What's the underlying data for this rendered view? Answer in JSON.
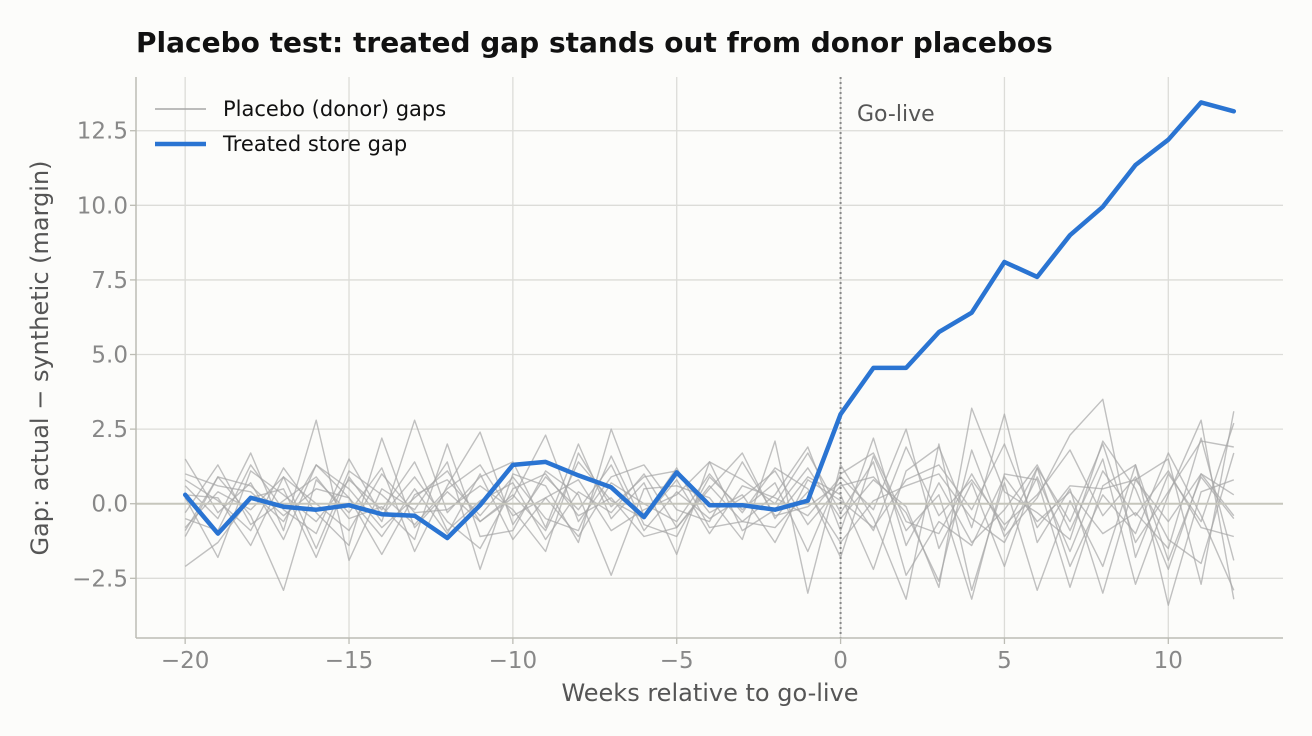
{
  "chart_data": {
    "type": "line",
    "title": "Placebo test: treated gap stands out from donor placebos",
    "xlabel": "Weeks relative to go-live",
    "ylabel": "Gap: actual − synthetic (margin)",
    "xlim": [
      -21.5,
      13.5
    ],
    "ylim": [
      -4.5,
      14.3
    ],
    "xticks": [
      -20,
      -15,
      -10,
      -5,
      0,
      5,
      10
    ],
    "xtick_labels": [
      "−20",
      "−15",
      "−10",
      "−5",
      "0",
      "5",
      "10"
    ],
    "yticks": [
      -2.5,
      0.0,
      2.5,
      5.0,
      7.5,
      10.0,
      12.5
    ],
    "ytick_labels": [
      "−2.5",
      "0.0",
      "2.5",
      "5.0",
      "7.5",
      "10.0",
      "12.5"
    ],
    "grid": true,
    "legend_position": "top-left",
    "legend": [
      {
        "label": "Placebo (donor) gaps",
        "style": "thin-gray"
      },
      {
        "label": "Treated store gap",
        "style": "thick-blue"
      }
    ],
    "annotations": [
      {
        "text": "Go-live",
        "x": 0,
        "type": "vertical-dotted-line"
      }
    ],
    "reference_lines": [
      {
        "axis": "y",
        "value": 0
      }
    ],
    "colors": {
      "treated": "#2a74d2",
      "placebo": "#a6a6a6",
      "grid": "#dcdcd8",
      "zero_line": "#c6c6bc",
      "spine": "#bcbcb4",
      "vline": "#888888",
      "background": "#fcfcfa"
    },
    "x": [
      -20,
      -19,
      -18,
      -17,
      -16,
      -15,
      -14,
      -13,
      -12,
      -11,
      -10,
      -9,
      -8,
      -7,
      -6,
      -5,
      -4,
      -3,
      -2,
      -1,
      0,
      1,
      2,
      3,
      4,
      5,
      6,
      7,
      8,
      9,
      10,
      11,
      12
    ],
    "treated": {
      "name": "Treated store gap",
      "values": [
        0.3,
        -1.0,
        0.2,
        -0.1,
        -0.2,
        -0.05,
        -0.35,
        -0.4,
        -1.15,
        -0.05,
        1.3,
        1.4,
        0.95,
        0.55,
        -0.45,
        1.05,
        -0.05,
        -0.05,
        -0.2,
        0.1,
        3.0,
        4.55,
        4.55,
        5.75,
        6.4,
        8.1,
        7.6,
        9.0,
        9.95,
        11.35,
        12.2,
        13.45,
        13.15
      ]
    },
    "placebos": [
      [
        1.5,
        -0.3,
        0.7,
        -1.2,
        1.3,
        0.5,
        -0.8,
        0.2,
        1.1,
        -0.6,
        0.3,
        -0.9,
        1.4,
        0.1,
        -0.5,
        0.8,
        -1.0,
        0.6,
        0.2,
        -0.4,
        0.9,
        -0.2,
        2.5,
        -1.5,
        0.7,
        -2.1,
        1.2,
        -0.6,
        2.0,
        -1.3,
        0.4,
        2.1,
        1.9
      ],
      [
        -0.8,
        0.4,
        -0.2,
        0.9,
        -1.5,
        1.1,
        0.3,
        -0.7,
        0.5,
        1.3,
        -0.4,
        0.2,
        -1.1,
        0.7,
        0.0,
        -0.6,
        1.0,
        -0.3,
        1.2,
        0.5,
        -1.8,
        1.6,
        -0.9,
        0.3,
        -3.2,
        1.0,
        0.8,
        -2.8,
        0.6,
        1.3,
        -1.9,
        0.9,
        -0.5
      ],
      [
        0.2,
        -1.8,
        1.1,
        0.3,
        -0.6,
        0.8,
        -0.2,
        1.4,
        -0.9,
        0.1,
        0.7,
        -1.2,
        0.4,
        -0.3,
        1.0,
        -0.8,
        0.5,
        1.7,
        -0.5,
        0.9,
        0.3,
        -2.2,
        1.1,
        1.9,
        -0.8,
        3.0,
        -1.3,
        0.5,
        -3.0,
        0.8,
        1.5,
        -2.7,
        3.1
      ],
      [
        -1.1,
        0.9,
        -0.4,
        -2.9,
        0.8,
        -0.3,
        1.2,
        -1.6,
        0.6,
        2.4,
        -0.7,
        0.9,
        -0.2,
        1.3,
        -0.9,
        0.4,
        -0.5,
        0.2,
        1.1,
        -0.7,
        0.6,
        0.9,
        -0.3,
        -2.6,
        1.8,
        -1.1,
        0.2,
        2.3,
        3.5,
        -1.8,
        1.0,
        -0.6,
        2.7
      ],
      [
        0.6,
        -0.5,
        1.7,
        -0.9,
        2.8,
        -1.9,
        0.5,
        -0.2,
        1.4,
        -2.2,
        1.0,
        0.6,
        -1.3,
        2.5,
        -0.4,
        1.2,
        -0.8,
        -0.6,
        0.3,
        1.9,
        -0.9,
        2.2,
        -1.4,
        0.7,
        -1.3,
        -0.2,
        1.3,
        -0.9,
        1.5,
        -2.7,
        0.3,
        2.8,
        -3.2
      ],
      [
        -2.1,
        -1.3,
        0.2,
        0.5,
        -1.8,
        0.9,
        -0.6,
        2.8,
        -0.3,
        0.9,
        1.4,
        -0.8,
        2.0,
        -0.5,
        0.7,
        -1.7,
        1.4,
        -0.9,
        -0.2,
        1.2,
        -0.5,
        0.8,
        -0.1,
        -2.8,
        3.2,
        0.4,
        -0.3,
        -1.2,
        2.1,
        0.5,
        -2.2,
        1.0,
        -0.4
      ],
      [
        0.8,
        0.1,
        -0.9,
        1.2,
        -0.3,
        -1.4,
        2.2,
        -0.8,
        0.4,
        -0.6,
        0.2,
        2.3,
        -0.6,
        0.9,
        1.3,
        -0.2,
        -0.6,
        1.4,
        -0.4,
        -0.1,
        0.7,
        -0.9,
        1.9,
        -0.4,
        0.8,
        -0.7,
        0.3,
        1.8,
        -0.4,
        0.9,
        -1.2,
        -2.0,
        1.7
      ],
      [
        -0.3,
        1.3,
        -0.7,
        0.1,
        0.9,
        -0.5,
        -0.1,
        -1.2,
        2.0,
        -1.1,
        -0.9,
        1.1,
        0.3,
        -2.4,
        0.5,
        0.6,
        0.2,
        -1.2,
        2.1,
        -3.0,
        1.3,
        -0.5,
        -3.2,
        2.0,
        -2.9,
        0.7,
        -2.9,
        0.1,
        -2.1,
        1.3,
        -3.4,
        0.4,
        0.8
      ],
      [
        1.0,
        0.6,
        0.4,
        -0.6,
        1.3,
        0.2,
        -1.1,
        0.5,
        -1.0,
        1.0,
        -1.2,
        0.2,
        0.8,
        -0.9,
        -0.2,
        0.3,
        1.4,
        0.8,
        0.0,
        1.7,
        -0.3,
        1.4,
        -2.4,
        -0.6,
        -1.4,
        0.9,
        -0.6,
        0.4,
        -1.0,
        -0.3,
        -1.5,
        2.2,
        -1.9
      ],
      [
        -0.5,
        -0.9,
        1.3,
        -0.2,
        -1.0,
        1.5,
        -0.4,
        0.9,
        -0.6,
        -1.5,
        0.5,
        1.0,
        -0.4,
        0.2,
        -1.1,
        -0.8,
        0.6,
        -0.6,
        -0.8,
        0.4,
        -1.3,
        0.1,
        0.6,
        1.0,
        -0.5,
        -1.3,
        0.9,
        -1.6,
        1.1,
        -0.4,
        1.1,
        -0.8,
        -1.1
      ],
      [
        0.3,
        0.2,
        -1.4,
        0.9,
        0.0,
        -0.9,
        1.0,
        -0.3,
        -0.2,
        0.6,
        -0.2,
        -1.6,
        1.7,
        -0.1,
        0.9,
        1.1,
        -0.3,
        0.3,
        -1.3,
        0.8,
        0.1,
        -0.8,
        0.8,
        1.3,
        -0.2,
        2.0,
        -0.8,
        0.6,
        0.5,
        0.8,
        -0.6,
        1.0,
        0.3
      ],
      [
        -0.9,
        0.9,
        0.6,
        -0.4,
        0.5,
        0.2,
        -1.7,
        0.3,
        0.8,
        -0.4,
        0.9,
        -0.5,
        -0.9,
        1.6,
        -0.7,
        -1.1,
        0.9,
        -0.2,
        0.7,
        -1.6,
        1.0,
        1.7,
        -0.6,
        -1.0,
        1.0,
        -0.9,
        1.2,
        -2.1,
        0.3,
        -1.0,
        1.7,
        -0.4,
        -2.9
      ]
    ]
  }
}
